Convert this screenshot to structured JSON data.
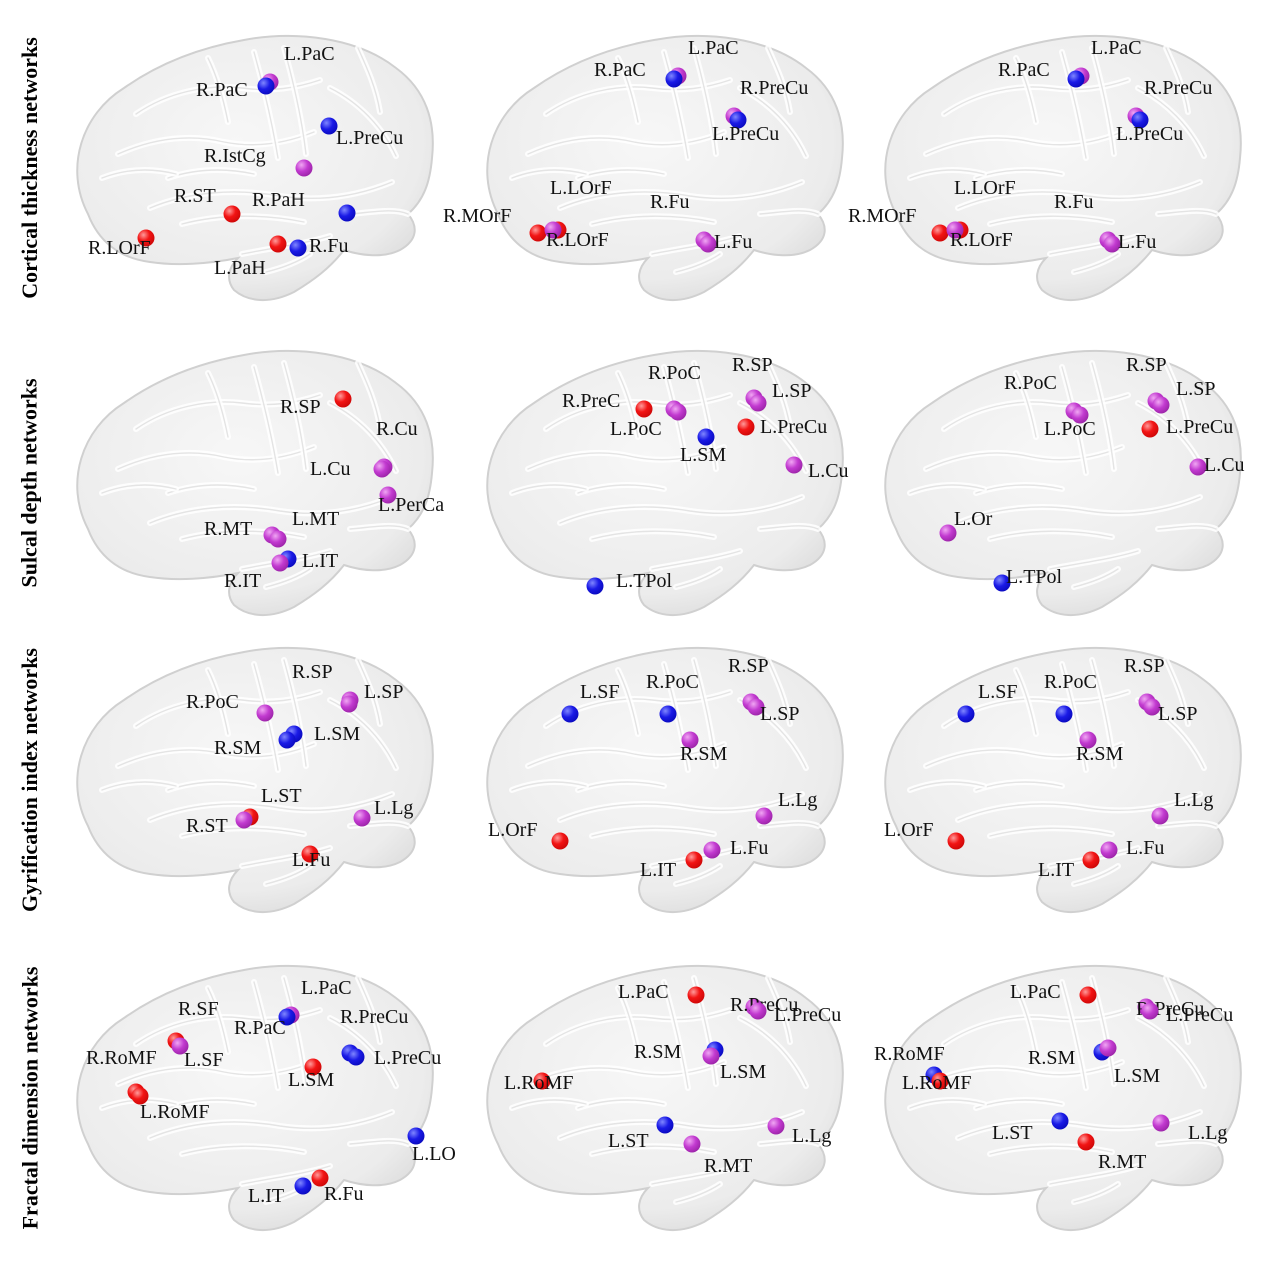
{
  "colors": {
    "red": "#e81c1c",
    "blue": "#1f20e0",
    "purple": "#bd3fd2"
  },
  "rows": [
    {
      "label": "Cortical thickness networks",
      "panels": [
        {
          "nodes": [
            {
              "label": "L.PaC",
              "color": "purple"
            },
            {
              "label": "R.PaC",
              "color": "blue"
            },
            {
              "label": "L.PreCu",
              "color": "blue"
            },
            {
              "label": "R.IstCg",
              "color": "purple"
            },
            {
              "label": "R.ST",
              "color": "red"
            },
            {
              "label": "R.PaH",
              "color": "blue"
            },
            {
              "label": "R.LOrF",
              "color": "red"
            },
            {
              "label": "L.PaH",
              "color": "red"
            },
            {
              "label": "R.Fu",
              "color": "blue"
            }
          ]
        },
        {
          "nodes": [
            {
              "label": "L.PaC",
              "color": "purple"
            },
            {
              "label": "R.PaC",
              "color": "blue"
            },
            {
              "label": "R.PreCu",
              "color": "purple"
            },
            {
              "label": "L.PreCu",
              "color": "blue"
            },
            {
              "label": "L.LOrF",
              "color": "red"
            },
            {
              "label": "R.MOrF",
              "color": "red"
            },
            {
              "label": "R.LOrF",
              "color": "purple"
            },
            {
              "label": "R.Fu",
              "color": "purple"
            },
            {
              "label": "L.Fu",
              "color": "purple"
            }
          ]
        },
        {
          "nodes": [
            {
              "label": "L.PaC",
              "color": "purple"
            },
            {
              "label": "R.PaC",
              "color": "blue"
            },
            {
              "label": "R.PreCu",
              "color": "purple"
            },
            {
              "label": "L.PreCu",
              "color": "blue"
            },
            {
              "label": "L.LOrF",
              "color": "red"
            },
            {
              "label": "R.MOrF",
              "color": "red"
            },
            {
              "label": "R.LOrF",
              "color": "purple"
            },
            {
              "label": "R.Fu",
              "color": "purple"
            },
            {
              "label": "L.Fu",
              "color": "purple"
            }
          ]
        }
      ]
    },
    {
      "label": "Sulcal depth networks",
      "panels": [
        {
          "nodes": [
            {
              "label": "R.SP",
              "color": "red"
            },
            {
              "label": "R.Cu",
              "color": "purple"
            },
            {
              "label": "L.Cu",
              "color": "purple"
            },
            {
              "label": "L.PerCa",
              "color": "purple"
            },
            {
              "label": "R.MT",
              "color": "purple"
            },
            {
              "label": "L.MT",
              "color": "purple"
            },
            {
              "label": "L.IT",
              "color": "blue"
            },
            {
              "label": "R.IT",
              "color": "purple"
            }
          ]
        },
        {
          "nodes": [
            {
              "label": "R.PoC",
              "color": "purple"
            },
            {
              "label": "R.SP",
              "color": "purple"
            },
            {
              "label": "R.PreC",
              "color": "red"
            },
            {
              "label": "L.SP",
              "color": "purple"
            },
            {
              "label": "L.PoC",
              "color": "purple"
            },
            {
              "label": "L.PreCu",
              "color": "red"
            },
            {
              "label": "L.SM",
              "color": "blue"
            },
            {
              "label": "L.Cu",
              "color": "purple"
            },
            {
              "label": "L.TPol",
              "color": "blue"
            }
          ]
        },
        {
          "nodes": [
            {
              "label": "R.PoC",
              "color": "purple"
            },
            {
              "label": "R.SP",
              "color": "purple"
            },
            {
              "label": "L.SP",
              "color": "purple"
            },
            {
              "label": "L.PoC",
              "color": "purple"
            },
            {
              "label": "L.PreCu",
              "color": "red"
            },
            {
              "label": "L.Cu",
              "color": "purple"
            },
            {
              "label": "L.Or",
              "color": "purple"
            },
            {
              "label": "L.TPol",
              "color": "blue"
            }
          ]
        }
      ]
    },
    {
      "label": "Gyrification index networks",
      "panels": [
        {
          "nodes": [
            {
              "label": "R.SP",
              "color": "purple"
            },
            {
              "label": "L.SP",
              "color": "purple"
            },
            {
              "label": "R.PoC",
              "color": "purple"
            },
            {
              "label": "L.SM",
              "color": "blue"
            },
            {
              "label": "R.SM",
              "color": "blue"
            },
            {
              "label": "L.ST",
              "color": "red"
            },
            {
              "label": "L.Lg",
              "color": "purple"
            },
            {
              "label": "R.ST",
              "color": "purple"
            },
            {
              "label": "L.Fu",
              "color": "red"
            }
          ]
        },
        {
          "nodes": [
            {
              "label": "L.SF",
              "color": "blue"
            },
            {
              "label": "R.PoC",
              "color": "blue"
            },
            {
              "label": "R.SP",
              "color": "purple"
            },
            {
              "label": "L.SP",
              "color": "purple"
            },
            {
              "label": "R.SM",
              "color": "purple"
            },
            {
              "label": "L.Lg",
              "color": "purple"
            },
            {
              "label": "L.OrF",
              "color": "red"
            },
            {
              "label": "L.Fu",
              "color": "purple"
            },
            {
              "label": "L.IT",
              "color": "red"
            }
          ]
        },
        {
          "nodes": [
            {
              "label": "L.SF",
              "color": "blue"
            },
            {
              "label": "R.PoC",
              "color": "blue"
            },
            {
              "label": "R.SP",
              "color": "purple"
            },
            {
              "label": "L.SP",
              "color": "purple"
            },
            {
              "label": "R.SM",
              "color": "purple"
            },
            {
              "label": "L.Lg",
              "color": "purple"
            },
            {
              "label": "L.OrF",
              "color": "red"
            },
            {
              "label": "L.Fu",
              "color": "purple"
            },
            {
              "label": "L.IT",
              "color": "red"
            }
          ]
        }
      ]
    },
    {
      "label": "Fractal dimension networks",
      "panels": [
        {
          "nodes": [
            {
              "label": "L.PaC",
              "color": "purple"
            },
            {
              "label": "R.SF",
              "color": "red"
            },
            {
              "label": "R.PaC",
              "color": "blue"
            },
            {
              "label": "R.PreCu",
              "color": "blue"
            },
            {
              "label": "R.RoMF",
              "color": "red"
            },
            {
              "label": "L.SF",
              "color": "purple"
            },
            {
              "label": "L.PreCu",
              "color": "blue"
            },
            {
              "label": "L.SM",
              "color": "red"
            },
            {
              "label": "L.RoMF",
              "color": "red"
            },
            {
              "label": "L.LO",
              "color": "blue"
            },
            {
              "label": "L.IT",
              "color": "blue"
            },
            {
              "label": "R.Fu",
              "color": "red"
            }
          ]
        },
        {
          "nodes": [
            {
              "label": "L.PaC",
              "color": "red"
            },
            {
              "label": "R.PreCu",
              "color": "purple"
            },
            {
              "label": "L.PreCu",
              "color": "purple"
            },
            {
              "label": "R.SM",
              "color": "blue"
            },
            {
              "label": "L.SM",
              "color": "purple"
            },
            {
              "label": "L.RoMF",
              "color": "red"
            },
            {
              "label": "L.Lg",
              "color": "purple"
            },
            {
              "label": "L.ST",
              "color": "blue"
            },
            {
              "label": "R.MT",
              "color": "purple"
            }
          ]
        },
        {
          "nodes": [
            {
              "label": "L.PaC",
              "color": "red"
            },
            {
              "label": "R.PreCu",
              "color": "purple"
            },
            {
              "label": "L.PreCu",
              "color": "purple"
            },
            {
              "label": "R.RoMF",
              "color": "blue"
            },
            {
              "label": "R.SM",
              "color": "blue"
            },
            {
              "label": "L.SM",
              "color": "purple"
            },
            {
              "label": "L.RoMF",
              "color": "red"
            },
            {
              "label": "L.ST",
              "color": "blue"
            },
            {
              "label": "L.Lg",
              "color": "purple"
            },
            {
              "label": "R.MT",
              "color": "red"
            }
          ]
        }
      ]
    }
  ]
}
